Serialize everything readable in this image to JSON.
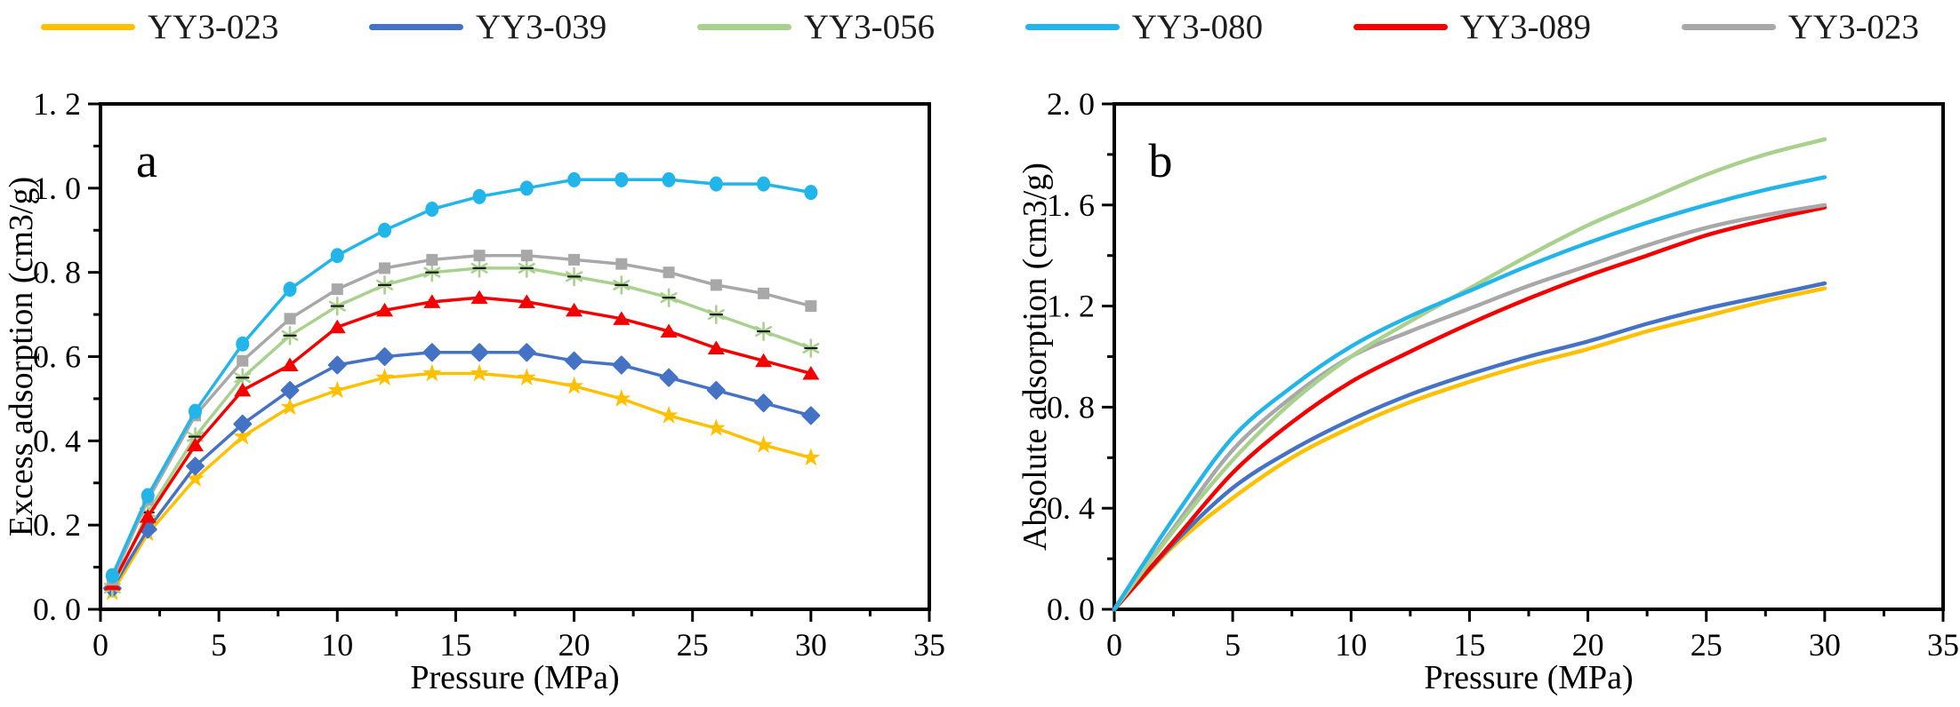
{
  "legend": {
    "items": [
      {
        "label": "YY3-023",
        "color": "#FFC000"
      },
      {
        "label": "YY3-039",
        "color": "#4472C4"
      },
      {
        "label": "YY3-056",
        "color": "#A9D18E"
      },
      {
        "label": "YY3-080",
        "color": "#22B5EA"
      },
      {
        "label": "YY3-089",
        "color": "#F40000"
      },
      {
        "label": "YY3-023",
        "color": "#A8A8A8"
      }
    ]
  },
  "panels": [
    {
      "letter": "a",
      "xlabel": "Pressure (MPa)",
      "ylabel": "Excess adsorption (cm3/g)",
      "x_ticks": {
        "values": [
          0,
          5,
          10,
          15,
          20,
          25,
          30,
          35
        ],
        "labels": [
          "0",
          "5",
          "10",
          "15",
          "20",
          "25",
          "30",
          "35"
        ],
        "minor_step": 2.5
      },
      "y_ticks": {
        "values": [
          0,
          0.2,
          0.4,
          0.6,
          0.8,
          1.0,
          1.2
        ],
        "labels": [
          "0. 0",
          "0. 2",
          "0. 4",
          "0. 6",
          "0. 8",
          "1. 0",
          "1. 2"
        ],
        "minor_step": 0.1
      }
    },
    {
      "letter": "b",
      "xlabel": "Pressure (MPa)",
      "ylabel": "Absolute adsorption (cm3/g)",
      "x_ticks": {
        "values": [
          0,
          5,
          10,
          15,
          20,
          25,
          30,
          35
        ],
        "labels": [
          "0",
          "5",
          "10",
          "15",
          "20",
          "25",
          "30",
          "35"
        ],
        "minor_step": 2.5
      },
      "y_ticks": {
        "values": [
          0,
          0.4,
          0.8,
          1.2,
          1.6,
          2.0
        ],
        "labels": [
          "0. 0",
          "0. 4",
          "0. 8",
          "1. 2",
          "1. 6",
          "2. 0"
        ],
        "minor_step": 0.2
      }
    }
  ],
  "chart_data": [
    {
      "type": "line",
      "title": "a",
      "xlabel": "Pressure (MPa)",
      "ylabel": "Excess adsorption (cm3/g)",
      "xlim": [
        0,
        35
      ],
      "ylim": [
        0,
        1.2
      ],
      "grid": false,
      "legend_position": "top",
      "x": [
        0.5,
        2,
        4,
        6,
        8,
        10,
        12,
        14,
        16,
        18,
        20,
        22,
        24,
        26,
        28,
        30
      ],
      "series": [
        {
          "name": "YY3-023",
          "color": "#FFC000",
          "marker": "star",
          "values": [
            0.04,
            0.18,
            0.31,
            0.41,
            0.48,
            0.52,
            0.55,
            0.56,
            0.56,
            0.55,
            0.53,
            0.5,
            0.46,
            0.43,
            0.39,
            0.36
          ]
        },
        {
          "name": "YY3-039",
          "color": "#4472C4",
          "marker": "diamond",
          "values": [
            0.05,
            0.19,
            0.34,
            0.44,
            0.52,
            0.58,
            0.6,
            0.61,
            0.61,
            0.61,
            0.59,
            0.58,
            0.55,
            0.52,
            0.49,
            0.46
          ]
        },
        {
          "name": "YY3-056",
          "color": "#A9D18E",
          "marker": "asterisk",
          "values": [
            0.05,
            0.23,
            0.41,
            0.55,
            0.65,
            0.72,
            0.77,
            0.8,
            0.81,
            0.81,
            0.79,
            0.77,
            0.74,
            0.7,
            0.66,
            0.62
          ]
        },
        {
          "name": "YY3-089",
          "color": "#F40000",
          "marker": "triangle",
          "values": [
            0.06,
            0.22,
            0.39,
            0.52,
            0.58,
            0.67,
            0.71,
            0.73,
            0.74,
            0.73,
            0.71,
            0.69,
            0.66,
            0.62,
            0.59,
            0.56
          ]
        },
        {
          "name": "YY3-023",
          "color": "#A8A8A8",
          "marker": "square",
          "values": [
            0.07,
            0.26,
            0.46,
            0.59,
            0.69,
            0.76,
            0.81,
            0.83,
            0.84,
            0.84,
            0.83,
            0.82,
            0.8,
            0.77,
            0.75,
            0.72
          ]
        },
        {
          "name": "YY3-080",
          "color": "#22B5EA",
          "marker": "circle",
          "values": [
            0.08,
            0.27,
            0.47,
            0.63,
            0.76,
            0.84,
            0.9,
            0.95,
            0.98,
            1.0,
            1.02,
            1.02,
            1.02,
            1.01,
            1.01,
            0.99
          ]
        }
      ]
    },
    {
      "type": "line",
      "title": "b",
      "xlabel": "Pressure (MPa)",
      "ylabel": "Absolute adsorption (cm3/g)",
      "xlim": [
        0,
        35
      ],
      "ylim": [
        0,
        2.0
      ],
      "grid": false,
      "smooth": true,
      "x": [
        0,
        2.5,
        5,
        7.5,
        10,
        12.5,
        15,
        17.5,
        20,
        22.5,
        25,
        27.5,
        30
      ],
      "series": [
        {
          "name": "YY3-023",
          "color": "#FFC000",
          "marker": "none",
          "values": [
            0,
            0.25,
            0.44,
            0.6,
            0.72,
            0.82,
            0.9,
            0.97,
            1.03,
            1.1,
            1.16,
            1.22,
            1.27
          ]
        },
        {
          "name": "YY3-039",
          "color": "#4472C4",
          "marker": "none",
          "values": [
            0,
            0.26,
            0.48,
            0.63,
            0.75,
            0.85,
            0.93,
            1.0,
            1.06,
            1.13,
            1.19,
            1.24,
            1.29
          ]
        },
        {
          "name": "YY3-089",
          "color": "#F40000",
          "marker": "none",
          "values": [
            0,
            0.27,
            0.54,
            0.74,
            0.9,
            1.02,
            1.13,
            1.23,
            1.32,
            1.4,
            1.48,
            1.54,
            1.59
          ]
        },
        {
          "name": "YY3-023",
          "color": "#A8A8A8",
          "marker": "none",
          "values": [
            0,
            0.32,
            0.63,
            0.84,
            1.0,
            1.1,
            1.19,
            1.28,
            1.36,
            1.44,
            1.51,
            1.56,
            1.6
          ]
        },
        {
          "name": "YY3-056",
          "color": "#A9D18E",
          "marker": "none",
          "values": [
            0,
            0.31,
            0.59,
            0.82,
            1.0,
            1.14,
            1.27,
            1.4,
            1.52,
            1.62,
            1.72,
            1.8,
            1.86
          ]
        },
        {
          "name": "YY3-080",
          "color": "#22B5EA",
          "marker": "none",
          "values": [
            0,
            0.36,
            0.68,
            0.88,
            1.04,
            1.16,
            1.26,
            1.36,
            1.45,
            1.53,
            1.6,
            1.66,
            1.71
          ]
        }
      ]
    }
  ]
}
